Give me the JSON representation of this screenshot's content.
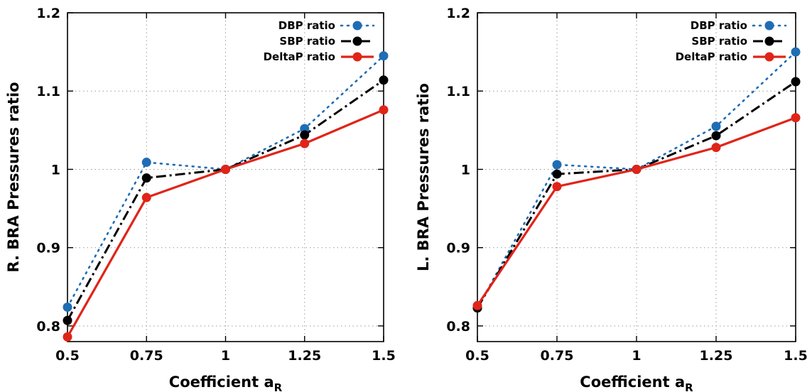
{
  "chart_data": [
    {
      "type": "line",
      "title": "",
      "xlabel": "Coefficient a",
      "xlabel_sub": "R",
      "ylabel": "R. BRA Pressures ratio",
      "xlim": [
        0.5,
        1.5
      ],
      "ylim": [
        0.78,
        1.2
      ],
      "x": [
        0.5,
        0.75,
        1,
        1.25,
        1.5
      ],
      "x_tick_labels": [
        "0.5",
        "0.75",
        "1",
        "1.25",
        "1.5"
      ],
      "y_ticks": [
        0.8,
        0.9,
        1,
        1.1,
        1.2
      ],
      "y_tick_labels": [
        "0.8",
        "0.9",
        "1",
        "1.1",
        "1.2"
      ],
      "grid": true,
      "legend_position": "top-right",
      "series": [
        {
          "name": "DBP ratio",
          "values": [
            0.824,
            1.009,
            1.0,
            1.052,
            1.145
          ],
          "color": "#1f6db5",
          "dash": "dotted"
        },
        {
          "name": "SBP ratio",
          "values": [
            0.807,
            0.989,
            1.0,
            1.044,
            1.114
          ],
          "color": "#000000",
          "dash": "dashdot"
        },
        {
          "name": "DeltaP ratio",
          "values": [
            0.786,
            0.964,
            1.0,
            1.033,
            1.076
          ],
          "color": "#e02418",
          "dash": "solid"
        }
      ]
    },
    {
      "type": "line",
      "title": "",
      "xlabel": "Coefficient a",
      "xlabel_sub": "R",
      "ylabel": "L. BRA Pressures ratio",
      "xlim": [
        0.5,
        1.5
      ],
      "ylim": [
        0.78,
        1.2
      ],
      "x": [
        0.5,
        0.75,
        1,
        1.25,
        1.5
      ],
      "x_tick_labels": [
        "0.5",
        "0.75",
        "1",
        "1.25",
        "1.5"
      ],
      "y_ticks": [
        0.8,
        0.9,
        1,
        1.1,
        1.2
      ],
      "y_tick_labels": [
        "0.8",
        "0.9",
        "1",
        "1.1",
        "1.2"
      ],
      "grid": true,
      "legend_position": "top-right",
      "series": [
        {
          "name": "DBP ratio",
          "values": [
            0.823,
            1.006,
            1.0,
            1.055,
            1.15
          ],
          "color": "#1f6db5",
          "dash": "dotted"
        },
        {
          "name": "SBP ratio",
          "values": [
            0.823,
            0.994,
            1.0,
            1.043,
            1.112
          ],
          "color": "#000000",
          "dash": "dashdot"
        },
        {
          "name": "DeltaP ratio",
          "values": [
            0.826,
            0.978,
            1.0,
            1.028,
            1.066
          ],
          "color": "#e02418",
          "dash": "solid"
        }
      ]
    }
  ]
}
